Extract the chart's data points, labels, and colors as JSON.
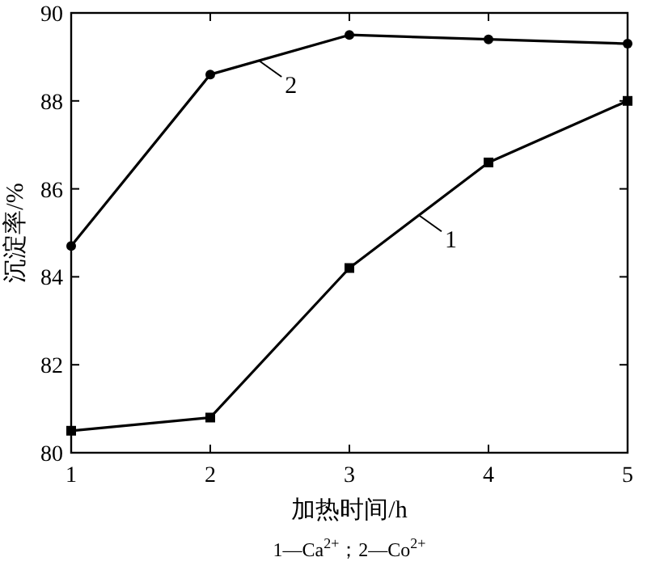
{
  "chart_data": {
    "type": "line",
    "xlabel": "加热时间/h",
    "ylabel": "沉淀率/%",
    "x": [
      1,
      2,
      3,
      4,
      5
    ],
    "series": [
      {
        "name": "1",
        "color": "#000000",
        "marker": "square",
        "values": [
          80.5,
          80.8,
          84.2,
          86.6,
          88.0
        ]
      },
      {
        "name": "2",
        "color": "#000000",
        "marker": "circle",
        "values": [
          84.7,
          88.6,
          89.5,
          89.4,
          89.3
        ]
      }
    ],
    "xlim": [
      1,
      5
    ],
    "xticks": [
      1,
      2,
      3,
      4,
      5
    ],
    "ylim": [
      80,
      90
    ],
    "yticks": [
      80,
      82,
      84,
      86,
      88,
      90
    ],
    "annotations": [
      "1—Ca$^{2+}$；2—Co$^{2+}$"
    ],
    "grid": false,
    "legend": "top"
  }
}
